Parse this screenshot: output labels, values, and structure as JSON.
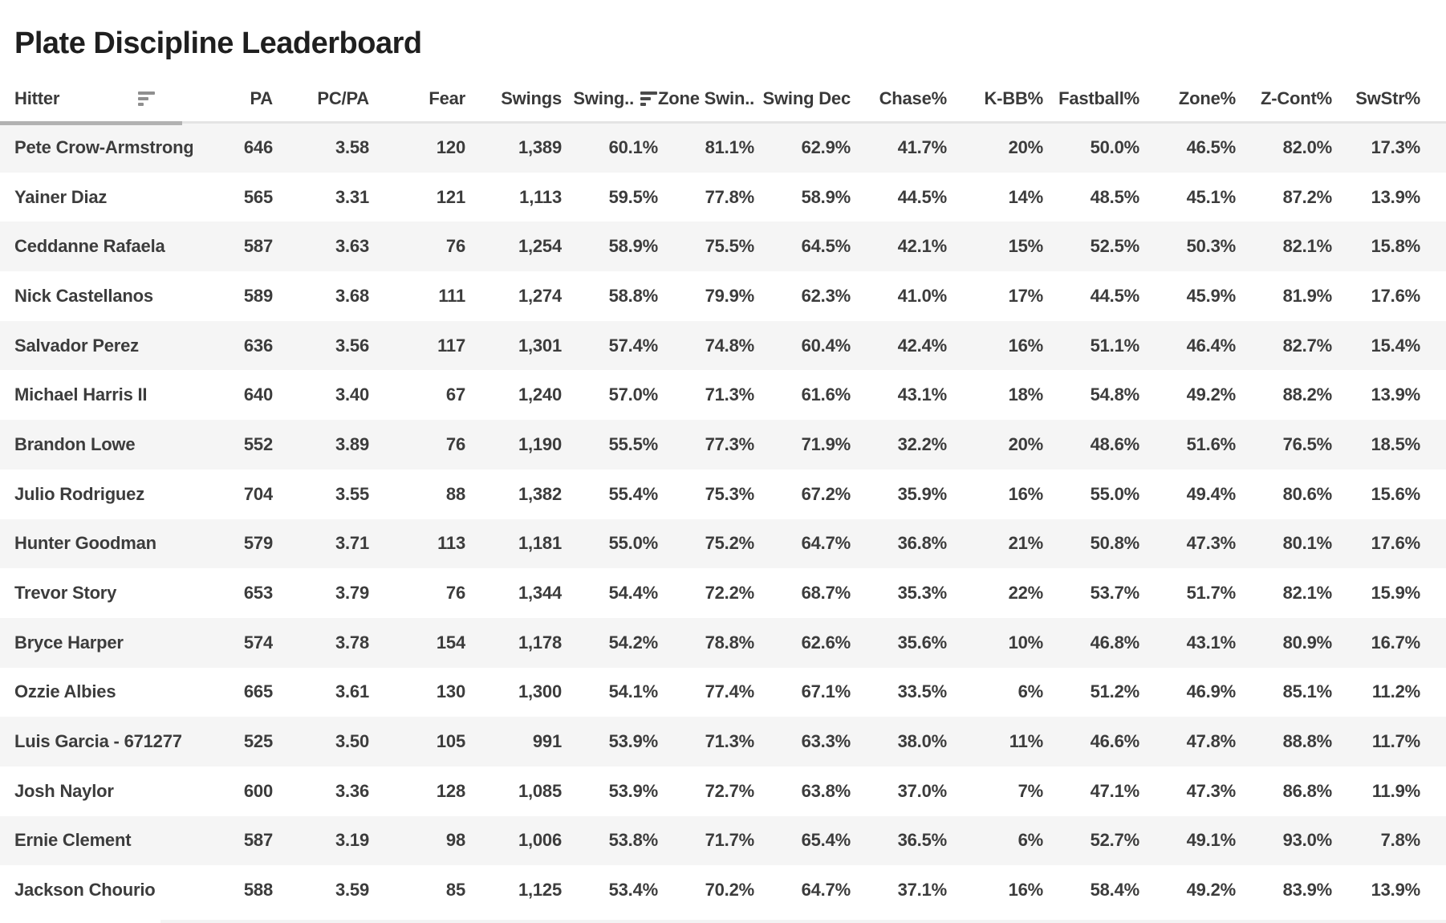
{
  "page": {
    "title": "Plate Discipline Leaderboard"
  },
  "colors": {
    "row_stripe": "#f5f5f5",
    "text": "#3c3c3c",
    "title_text": "#1f1f1f",
    "header_underline_thumb": "#b2b2b2",
    "header_underline_track": "#e4e4e4",
    "sort_icon_gray": "#8f8f8f",
    "sort_icon_dark": "#4b4b4b"
  },
  "table": {
    "columns": [
      {
        "id": "hitter",
        "label": "Hitter",
        "align": "left",
        "sort_icon": "gray"
      },
      {
        "id": "pa",
        "label": "PA"
      },
      {
        "id": "pc_pa",
        "label": "PC/PA"
      },
      {
        "id": "fear",
        "label": "Fear"
      },
      {
        "id": "swings",
        "label": "Swings"
      },
      {
        "id": "swing_pct",
        "label": "Swing..",
        "sort_icon": "dark"
      },
      {
        "id": "zone_swing",
        "label": "Zone Swin.."
      },
      {
        "id": "swing_dec",
        "label": "Swing Dec"
      },
      {
        "id": "chase_pct",
        "label": "Chase%"
      },
      {
        "id": "k_bb_pct",
        "label": "K-BB%"
      },
      {
        "id": "fastball_pct",
        "label": "Fastball%"
      },
      {
        "id": "zone_pct",
        "label": "Zone%"
      },
      {
        "id": "z_cont_pct",
        "label": "Z-Cont%"
      },
      {
        "id": "swstr_pct",
        "label": "SwStr%"
      }
    ],
    "rows": [
      [
        "Pete Crow-Armstrong",
        "646",
        "3.58",
        "120",
        "1,389",
        "60.1%",
        "81.1%",
        "62.9%",
        "41.7%",
        "20%",
        "50.0%",
        "46.5%",
        "82.0%",
        "17.3%"
      ],
      [
        "Yainer Diaz",
        "565",
        "3.31",
        "121",
        "1,113",
        "59.5%",
        "77.8%",
        "58.9%",
        "44.5%",
        "14%",
        "48.5%",
        "45.1%",
        "87.2%",
        "13.9%"
      ],
      [
        "Ceddanne Rafaela",
        "587",
        "3.63",
        "76",
        "1,254",
        "58.9%",
        "75.5%",
        "64.5%",
        "42.1%",
        "15%",
        "52.5%",
        "50.3%",
        "82.1%",
        "15.8%"
      ],
      [
        "Nick Castellanos",
        "589",
        "3.68",
        "111",
        "1,274",
        "58.8%",
        "79.9%",
        "62.3%",
        "41.0%",
        "17%",
        "44.5%",
        "45.9%",
        "81.9%",
        "17.6%"
      ],
      [
        "Salvador Perez",
        "636",
        "3.56",
        "117",
        "1,301",
        "57.4%",
        "74.8%",
        "60.4%",
        "42.4%",
        "16%",
        "51.1%",
        "46.4%",
        "82.7%",
        "15.4%"
      ],
      [
        "Michael Harris II",
        "640",
        "3.40",
        "67",
        "1,240",
        "57.0%",
        "71.3%",
        "61.6%",
        "43.1%",
        "18%",
        "54.8%",
        "49.2%",
        "88.2%",
        "13.9%"
      ],
      [
        "Brandon Lowe",
        "552",
        "3.89",
        "76",
        "1,190",
        "55.5%",
        "77.3%",
        "71.9%",
        "32.2%",
        "20%",
        "48.6%",
        "51.6%",
        "76.5%",
        "18.5%"
      ],
      [
        "Julio Rodriguez",
        "704",
        "3.55",
        "88",
        "1,382",
        "55.4%",
        "75.3%",
        "67.2%",
        "35.9%",
        "16%",
        "55.0%",
        "49.4%",
        "80.6%",
        "15.6%"
      ],
      [
        "Hunter Goodman",
        "579",
        "3.71",
        "113",
        "1,181",
        "55.0%",
        "75.2%",
        "64.7%",
        "36.8%",
        "21%",
        "50.8%",
        "47.3%",
        "80.1%",
        "17.6%"
      ],
      [
        "Trevor Story",
        "653",
        "3.79",
        "76",
        "1,344",
        "54.4%",
        "72.2%",
        "68.7%",
        "35.3%",
        "22%",
        "53.7%",
        "51.7%",
        "82.1%",
        "15.9%"
      ],
      [
        "Bryce Harper",
        "574",
        "3.78",
        "154",
        "1,178",
        "54.2%",
        "78.8%",
        "62.6%",
        "35.6%",
        "10%",
        "46.8%",
        "43.1%",
        "80.9%",
        "16.7%"
      ],
      [
        "Ozzie Albies",
        "665",
        "3.61",
        "130",
        "1,300",
        "54.1%",
        "77.4%",
        "67.1%",
        "33.5%",
        "6%",
        "51.2%",
        "46.9%",
        "85.1%",
        "11.2%"
      ],
      [
        "Luis Garcia - 671277",
        "525",
        "3.50",
        "105",
        "991",
        "53.9%",
        "71.3%",
        "63.3%",
        "38.0%",
        "11%",
        "46.6%",
        "47.8%",
        "88.8%",
        "11.7%"
      ],
      [
        "Josh Naylor",
        "600",
        "3.36",
        "128",
        "1,085",
        "53.9%",
        "72.7%",
        "63.8%",
        "37.0%",
        "7%",
        "47.1%",
        "47.3%",
        "86.8%",
        "11.9%"
      ],
      [
        "Ernie Clement",
        "587",
        "3.19",
        "98",
        "1,006",
        "53.8%",
        "71.7%",
        "65.4%",
        "36.5%",
        "6%",
        "52.7%",
        "49.1%",
        "93.0%",
        "7.8%"
      ],
      [
        "Jackson Chourio",
        "588",
        "3.59",
        "85",
        "1,125",
        "53.4%",
        "70.2%",
        "64.7%",
        "37.1%",
        "16%",
        "58.4%",
        "49.2%",
        "83.9%",
        "13.9%"
      ]
    ]
  }
}
